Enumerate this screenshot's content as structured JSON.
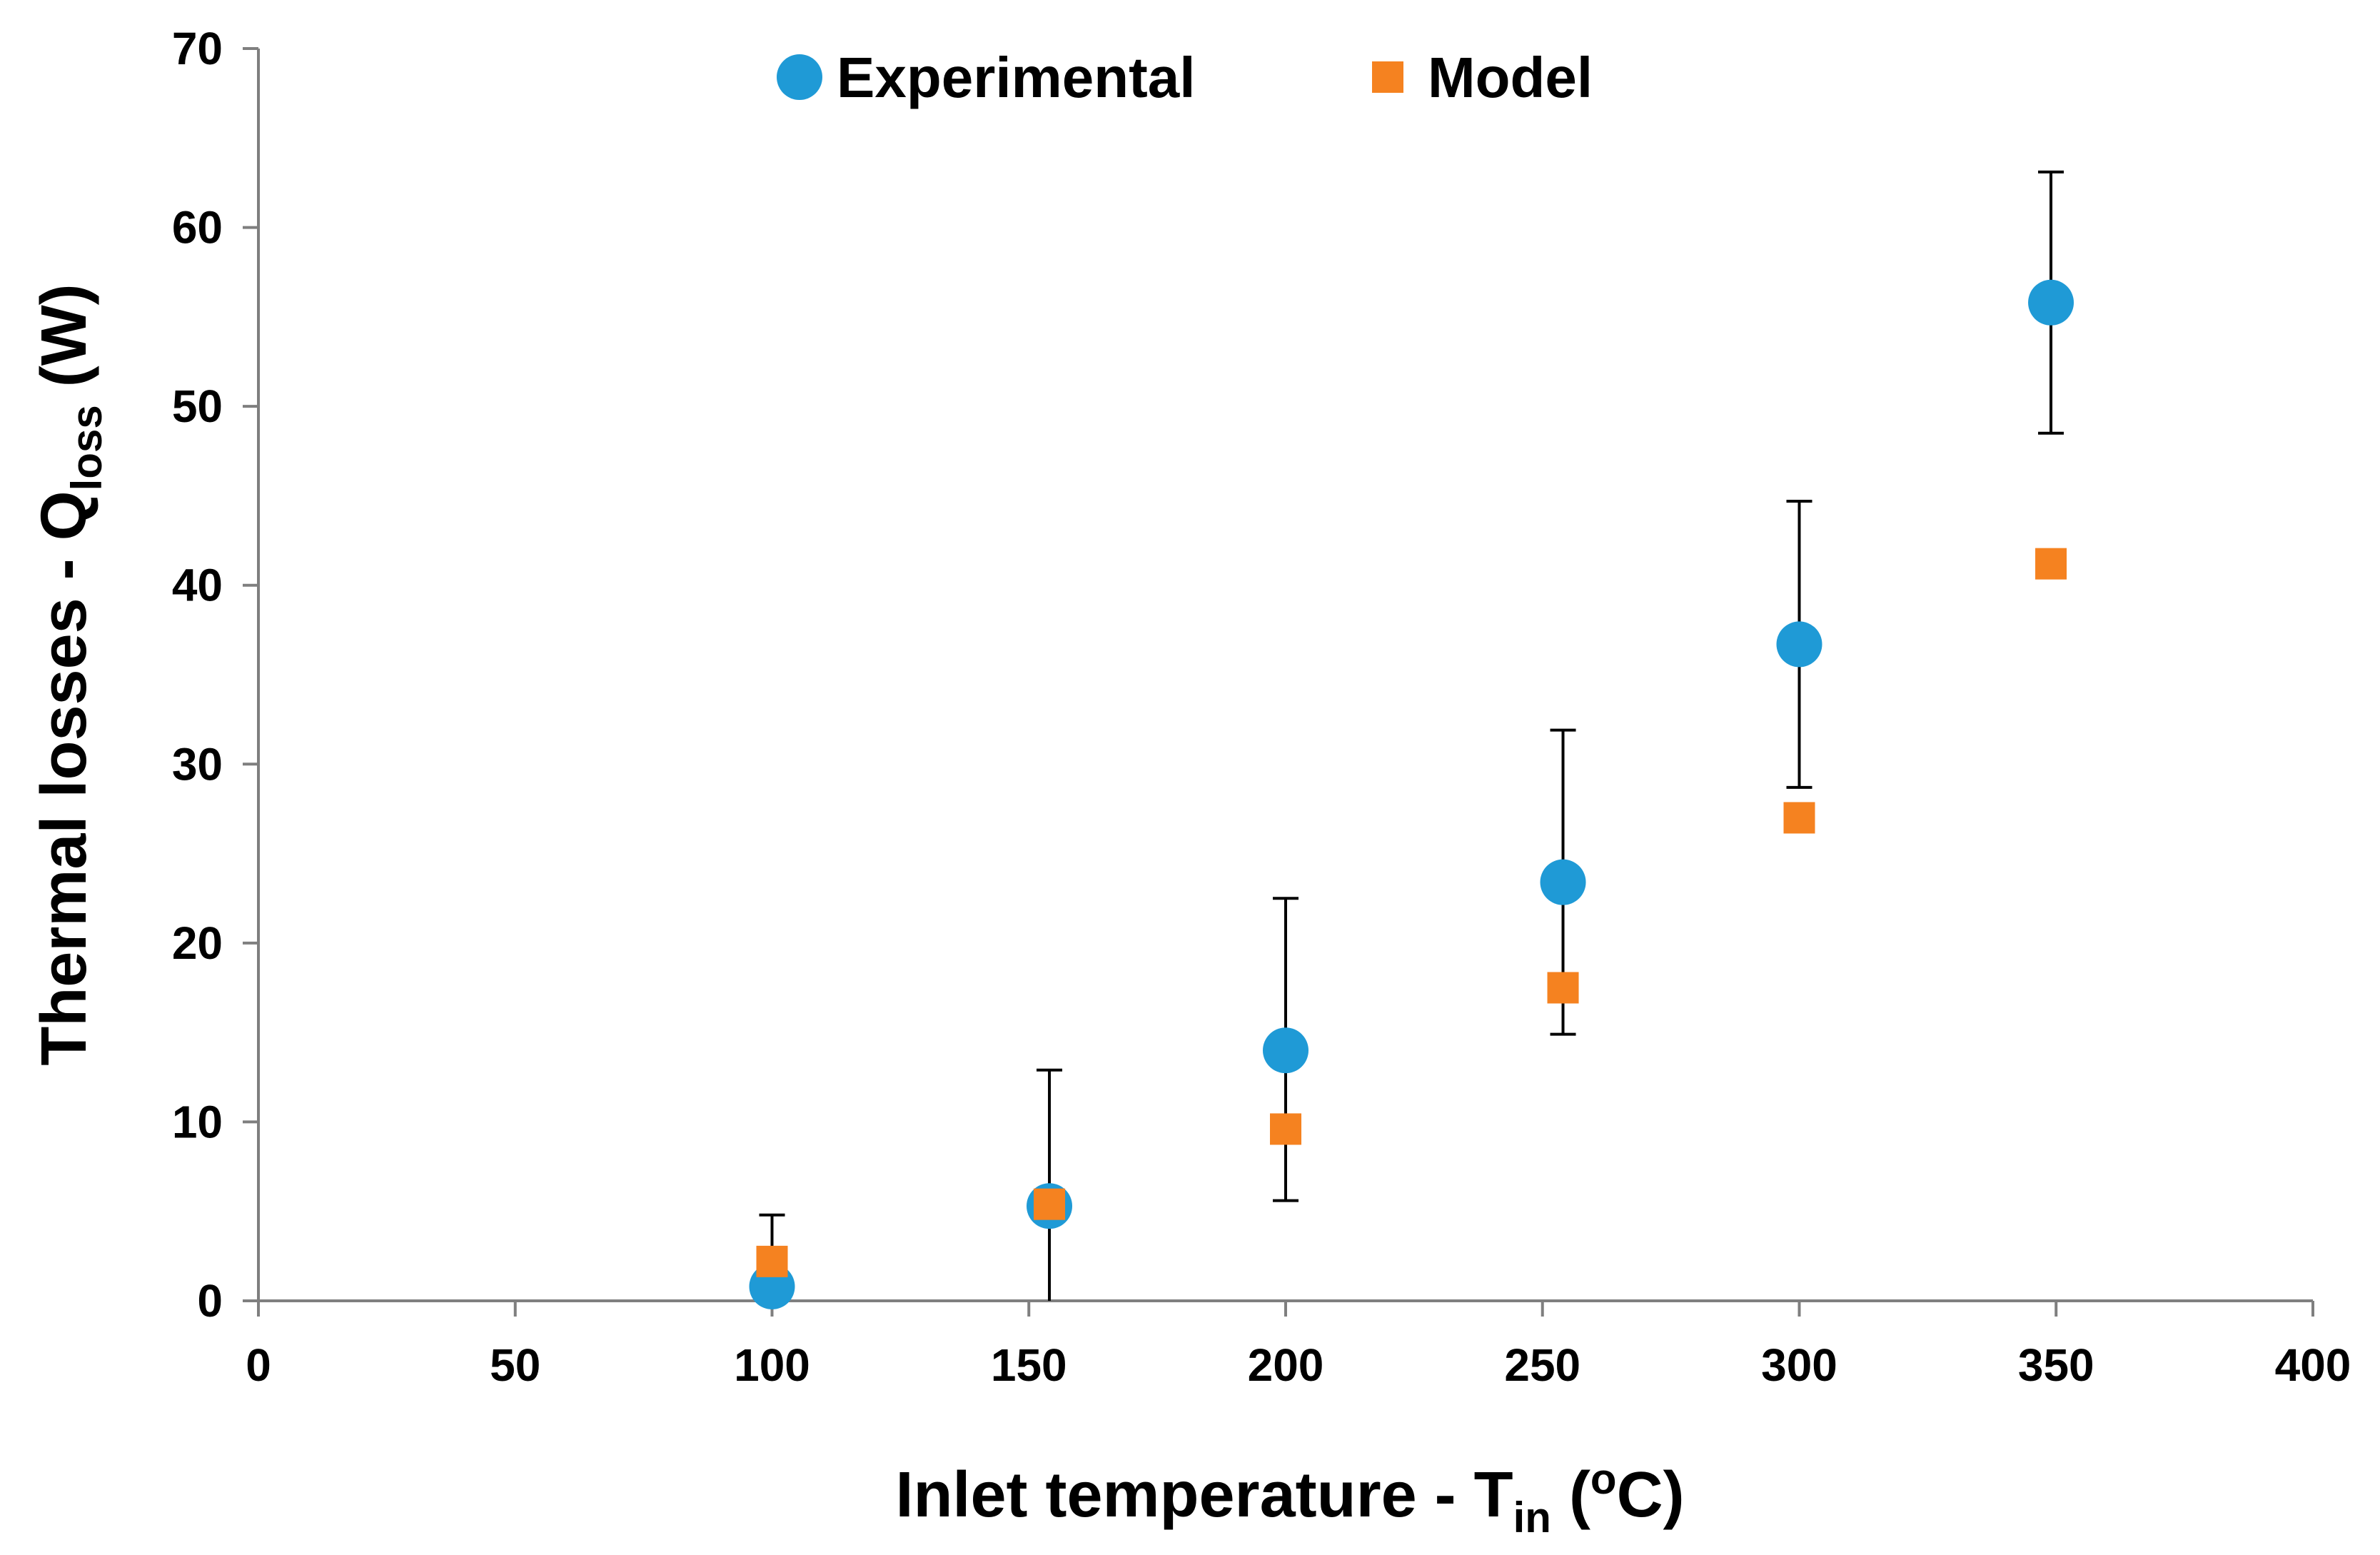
{
  "chart_data": {
    "type": "scatter",
    "xlabel": {
      "main": "Inlet temperature - T",
      "sub": "in",
      "tail": " (",
      "sup": "o",
      "end": "C)"
    },
    "ylabel": {
      "main": "Thermal losses - Q",
      "sub": "loss",
      "tail": " (W)"
    },
    "xlim": [
      0,
      400
    ],
    "ylim": [
      0,
      70
    ],
    "x_ticks": [
      0,
      50,
      100,
      150,
      200,
      250,
      300,
      350,
      400
    ],
    "y_ticks": [
      0,
      10,
      20,
      30,
      40,
      50,
      60,
      70
    ],
    "grid": false,
    "legend_position": "top-center",
    "series": [
      {
        "name": "Experimental",
        "marker": "circle",
        "color": "#1f9ad6",
        "points": [
          {
            "x": 100,
            "y": 0.8,
            "err_low": 0.8,
            "err_high": 4.8
          },
          {
            "x": 154,
            "y": 5.3,
            "err_low": 0.0,
            "err_high": 12.9
          },
          {
            "x": 200,
            "y": 14.0,
            "err_low": 5.6,
            "err_high": 22.5
          },
          {
            "x": 254,
            "y": 23.4,
            "err_low": 14.9,
            "err_high": 31.9
          },
          {
            "x": 300,
            "y": 36.7,
            "err_low": 28.7,
            "err_high": 44.7
          },
          {
            "x": 349,
            "y": 55.8,
            "err_low": 48.5,
            "err_high": 63.1
          }
        ]
      },
      {
        "name": "Model",
        "marker": "square",
        "color": "#f58220",
        "points": [
          {
            "x": 100,
            "y": 2.2
          },
          {
            "x": 154,
            "y": 5.4
          },
          {
            "x": 200,
            "y": 9.6
          },
          {
            "x": 254,
            "y": 17.5
          },
          {
            "x": 300,
            "y": 27.0
          },
          {
            "x": 349,
            "y": 41.2
          }
        ]
      }
    ]
  }
}
